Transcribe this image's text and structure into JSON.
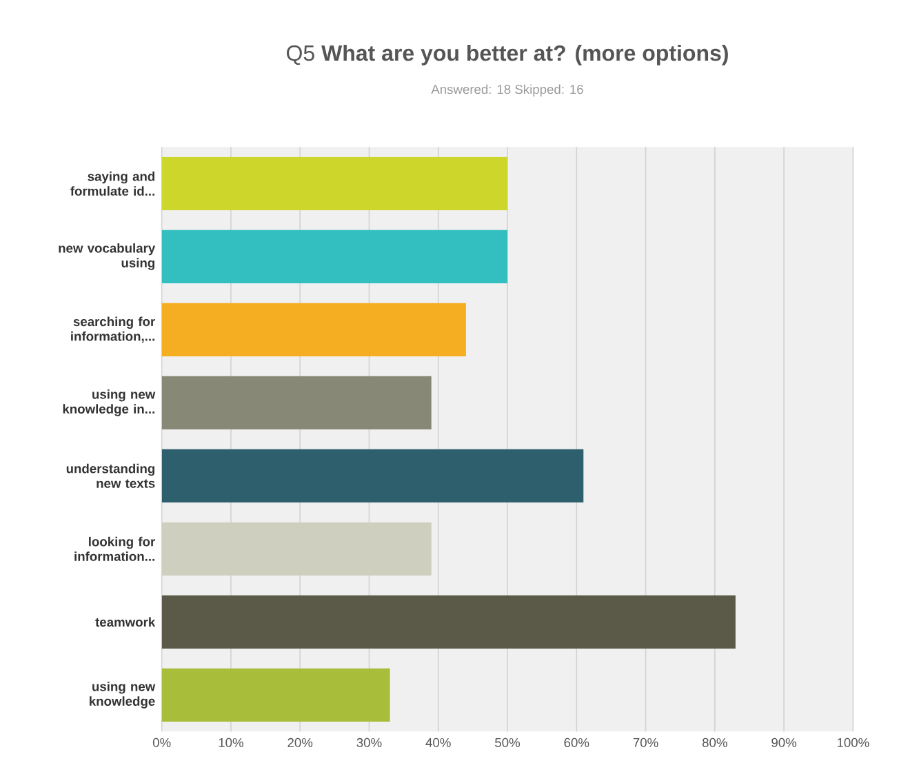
{
  "chart_data": {
    "type": "bar",
    "orientation": "horizontal",
    "title": "Q5 **What are you better at? (more options)**",
    "subtitle": "Answered: 18    Skipped: 16",
    "categories": [
      "saying and formulate id...",
      "new vocabulary using",
      "searching for information,...",
      "using new knowledge in...",
      "understanding new texts",
      "looking for information...",
      "teamwork",
      "using new knowledge"
    ],
    "values": [
      50,
      50,
      44,
      39,
      61,
      39,
      83,
      33
    ],
    "colors": [
      "#cdd62a",
      "#33bfc0",
      "#f5ae22",
      "#888876",
      "#2d5f6c",
      "#cfcfc0",
      "#5b5a49",
      "#a8bd3a"
    ],
    "xlim": [
      0,
      100
    ],
    "xticks": [
      {
        "value": 0,
        "label": "0%"
      },
      {
        "value": 10,
        "label": "10%"
      },
      {
        "value": 20,
        "label": "20%"
      },
      {
        "value": 30,
        "label": "30%"
      },
      {
        "value": 40,
        "label": "40%"
      },
      {
        "value": 50,
        "label": "50%"
      },
      {
        "value": 60,
        "label": "60%"
      },
      {
        "value": 70,
        "label": "70%"
      },
      {
        "value": 80,
        "label": "80%"
      },
      {
        "value": 90,
        "label": "90%"
      },
      {
        "value": 100,
        "label": "100%"
      }
    ],
    "grid": "x"
  }
}
